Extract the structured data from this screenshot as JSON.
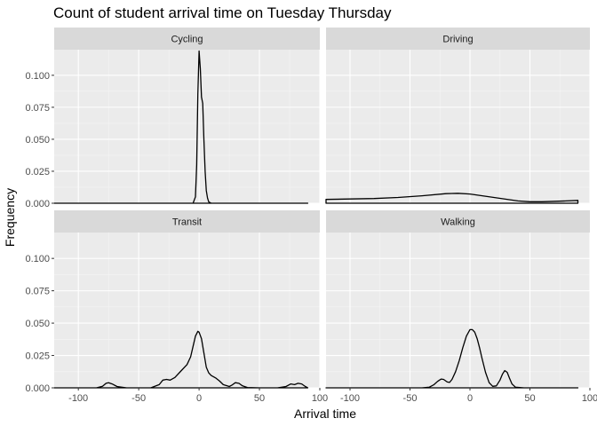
{
  "chart_data": {
    "type": "line",
    "subtype": "density-facets",
    "title": "Count of student arrival time on Tuesday Thursday",
    "xlabel": "Arrival time",
    "ylabel": "Frequency",
    "xlim": [
      -120,
      100
    ],
    "ylim": [
      0,
      0.12
    ],
    "x_ticks": [
      -100,
      -50,
      0,
      50,
      100
    ],
    "x_tick_labels": [
      "-100",
      "-50",
      "0",
      "50",
      "100"
    ],
    "y_ticks": [
      0,
      0.025,
      0.05,
      0.075,
      0.1
    ],
    "y_tick_labels": [
      "0.000",
      "0.025",
      "0.050",
      "0.075",
      "0.100"
    ],
    "grid": true,
    "background": "#ebebeb",
    "strip_background": "#d9d9d9",
    "line_color": "#000000",
    "panels": [
      {
        "name": "Cycling",
        "x": [
          -120,
          -20,
          -5,
          -3,
          -2,
          -1,
          0,
          1,
          2,
          3,
          4,
          5,
          6,
          7,
          8,
          10,
          15,
          90
        ],
        "y": [
          0,
          0,
          0,
          0.005,
          0.03,
          0.085,
          0.119,
          0.105,
          0.083,
          0.078,
          0.05,
          0.025,
          0.01,
          0.004,
          0.001,
          0,
          0,
          0
        ]
      },
      {
        "name": "Driving",
        "x": [
          -120,
          -100,
          -80,
          -60,
          -40,
          -20,
          -10,
          0,
          20,
          40,
          50,
          60,
          80,
          90
        ],
        "y": [
          0.003,
          0.0033,
          0.0037,
          0.0045,
          0.0058,
          0.0075,
          0.0078,
          0.0072,
          0.0045,
          0.0018,
          0.0012,
          0.0012,
          0.0018,
          0.0022
        ]
      },
      {
        "name": "Transit",
        "x": [
          -120,
          -85,
          -80,
          -77,
          -75,
          -72,
          -68,
          -60,
          -40,
          -33,
          -30,
          -27,
          -24,
          -20,
          -15,
          -10,
          -7,
          -5,
          -3,
          -1,
          0,
          2,
          4,
          6,
          8,
          10,
          12,
          14,
          17,
          20,
          25,
          27,
          30,
          33,
          36,
          40,
          50,
          65,
          72,
          76,
          79,
          82,
          85,
          88,
          90
        ],
        "y": [
          0,
          0,
          0.0012,
          0.0035,
          0.004,
          0.003,
          0.001,
          0,
          0,
          0.0025,
          0.006,
          0.0065,
          0.006,
          0.008,
          0.013,
          0.018,
          0.024,
          0.032,
          0.04,
          0.0437,
          0.043,
          0.038,
          0.027,
          0.016,
          0.0115,
          0.0095,
          0.0085,
          0.0075,
          0.0052,
          0.0025,
          0.001,
          0.002,
          0.004,
          0.0035,
          0.0015,
          0.0003,
          0,
          0,
          0.001,
          0.003,
          0.0025,
          0.0035,
          0.003,
          0.001,
          0
        ]
      },
      {
        "name": "Walking",
        "x": [
          -120,
          -40,
          -34,
          -30,
          -27,
          -24,
          -22,
          -19,
          -17,
          -15,
          -12,
          -9,
          -6,
          -3,
          0,
          2,
          4,
          6,
          8,
          10,
          13,
          16,
          19,
          22,
          25,
          27,
          29,
          31,
          33,
          35,
          38,
          45,
          90
        ],
        "y": [
          0,
          0,
          0.0005,
          0.0025,
          0.005,
          0.0068,
          0.0065,
          0.0045,
          0.0042,
          0.0065,
          0.0125,
          0.021,
          0.031,
          0.04,
          0.045,
          0.045,
          0.043,
          0.038,
          0.031,
          0.023,
          0.012,
          0.004,
          0.0012,
          0.0015,
          0.006,
          0.0105,
          0.0133,
          0.012,
          0.0075,
          0.003,
          0.0005,
          0,
          0
        ]
      }
    ]
  }
}
